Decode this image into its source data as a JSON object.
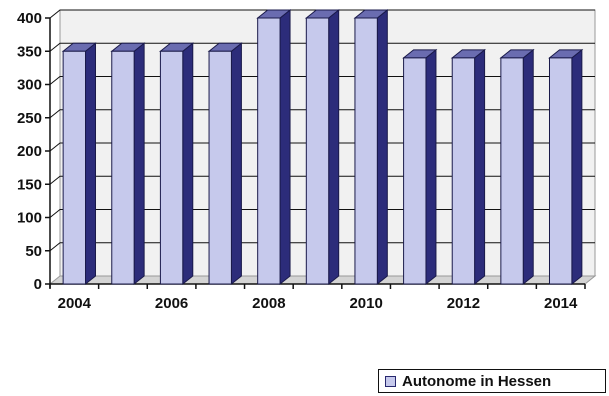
{
  "chart_data": {
    "type": "bar",
    "categories": [
      "2004",
      "2005",
      "2006",
      "2007",
      "2008",
      "2009",
      "2010",
      "2011",
      "2012",
      "2013",
      "2014"
    ],
    "x_tick_labels": [
      "2004",
      "2006",
      "2008",
      "2010",
      "2012",
      "2014"
    ],
    "series": [
      {
        "name": "Autonome in Hessen",
        "values": [
          350,
          350,
          350,
          350,
          400,
          400,
          400,
          340,
          340,
          340,
          340
        ]
      }
    ],
    "ylim": [
      0,
      400
    ],
    "y_ticks": [
      0,
      50,
      100,
      150,
      200,
      250,
      300,
      350,
      400
    ],
    "title": "",
    "xlabel": "",
    "ylabel": "",
    "grid": true,
    "legend_position": "bottom-right",
    "colors": {
      "bar_front": "#c6c9ec",
      "bar_side": "#2c2c7a",
      "bar_top": "#6a6cb0",
      "wall": "#f1f1f1"
    }
  }
}
